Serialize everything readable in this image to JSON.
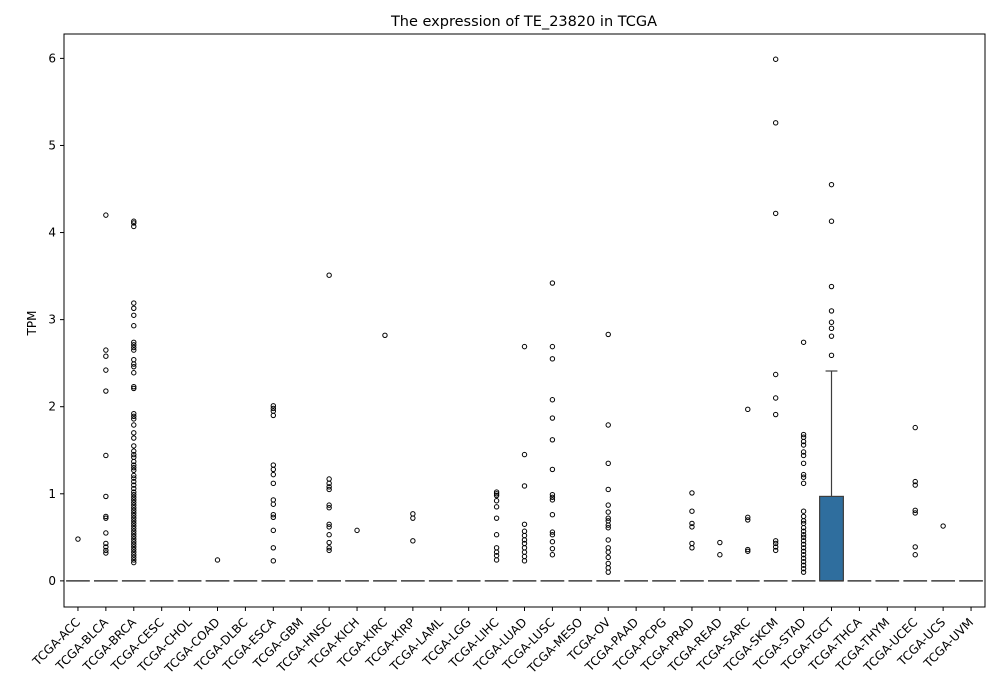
{
  "chart_data": {
    "type": "box",
    "title": "The expression of TE_23820 in TCGA",
    "xlabel": "",
    "ylabel": "TPM",
    "ylim": [
      -0.3,
      6.28
    ],
    "yticks": [
      0,
      1,
      2,
      3,
      4,
      5,
      6
    ],
    "box_color": "#2f6e9e",
    "categories": [
      "TCGA-ACC",
      "TCGA-BLCA",
      "TCGA-BRCA",
      "TCGA-CESC",
      "TCGA-CHOL",
      "TCGA-COAD",
      "TCGA-DLBC",
      "TCGA-ESCA",
      "TCGA-GBM",
      "TCGA-HNSC",
      "TCGA-KICH",
      "TCGA-KIRC",
      "TCGA-KIRP",
      "TCGA-LAML",
      "TCGA-LGG",
      "TCGA-LIHC",
      "TCGA-LUAD",
      "TCGA-LUSC",
      "TCGA-MESO",
      "TCGA-OV",
      "TCGA-PAAD",
      "TCGA-PCPG",
      "TCGA-PRAD",
      "TCGA-READ",
      "TCGA-SARC",
      "TCGA-SKCM",
      "TCGA-STAD",
      "TCGA-TGCT",
      "TCGA-THCA",
      "TCGA-THYM",
      "TCGA-UCEC",
      "TCGA-UCS",
      "TCGA-UVM"
    ],
    "boxes": [
      {
        "q1": 0,
        "median": 0,
        "q3": 0,
        "whisker_low": 0,
        "whisker_high": 0,
        "outliers": [
          0.48
        ]
      },
      {
        "q1": 0,
        "median": 0,
        "q3": 0,
        "whisker_low": 0,
        "whisker_high": 0,
        "outliers": [
          4.2,
          2.65,
          2.58,
          2.42,
          2.18,
          1.44,
          0.97,
          0.74,
          0.72,
          0.55,
          0.43,
          0.39,
          0.35,
          0.32
        ]
      },
      {
        "q1": 0,
        "median": 0,
        "q3": 0,
        "whisker_low": 0,
        "whisker_high": 0,
        "outliers": [
          4.13,
          4.11,
          4.07,
          3.19,
          3.13,
          3.05,
          2.93,
          2.74,
          2.71,
          2.68,
          2.65,
          2.54,
          2.49,
          2.46,
          2.39,
          2.23,
          2.21,
          1.92,
          1.89,
          1.86,
          1.79,
          1.7,
          1.64,
          1.55,
          1.49,
          1.45,
          1.42,
          1.37,
          1.33,
          1.3,
          1.27,
          1.21,
          1.18,
          1.14,
          1.1,
          1.06,
          1.02,
          0.99,
          0.96,
          0.93,
          0.9,
          0.87,
          0.84,
          0.81,
          0.78,
          0.75,
          0.72,
          0.69,
          0.66,
          0.63,
          0.6,
          0.57,
          0.54,
          0.51,
          0.48,
          0.45,
          0.42,
          0.39,
          0.36,
          0.33,
          0.3,
          0.27,
          0.24,
          0.21
        ]
      },
      {
        "q1": 0,
        "median": 0,
        "q3": 0,
        "whisker_low": 0,
        "whisker_high": 0,
        "outliers": []
      },
      {
        "q1": 0,
        "median": 0,
        "q3": 0,
        "whisker_low": 0,
        "whisker_high": 0,
        "outliers": []
      },
      {
        "q1": 0,
        "median": 0,
        "q3": 0,
        "whisker_low": 0,
        "whisker_high": 0,
        "outliers": [
          0.24
        ]
      },
      {
        "q1": 0,
        "median": 0,
        "q3": 0,
        "whisker_low": 0,
        "whisker_high": 0,
        "outliers": []
      },
      {
        "q1": 0,
        "median": 0,
        "q3": 0,
        "whisker_low": 0,
        "whisker_high": 0,
        "outliers": [
          2.01,
          1.98,
          1.95,
          1.9,
          1.33,
          1.28,
          1.22,
          1.12,
          0.93,
          0.88,
          0.76,
          0.73,
          0.58,
          0.38,
          0.23
        ]
      },
      {
        "q1": 0,
        "median": 0,
        "q3": 0,
        "whisker_low": 0,
        "whisker_high": 0,
        "outliers": []
      },
      {
        "q1": 0,
        "median": 0,
        "q3": 0,
        "whisker_low": 0,
        "whisker_high": 0,
        "outliers": [
          3.51,
          1.17,
          1.12,
          1.08,
          1.05,
          0.87,
          0.84,
          0.65,
          0.62,
          0.53,
          0.44,
          0.38,
          0.35
        ]
      },
      {
        "q1": 0,
        "median": 0,
        "q3": 0,
        "whisker_low": 0,
        "whisker_high": 0,
        "outliers": [
          0.58
        ]
      },
      {
        "q1": 0,
        "median": 0,
        "q3": 0,
        "whisker_low": 0,
        "whisker_high": 0,
        "outliers": [
          2.82
        ]
      },
      {
        "q1": 0,
        "median": 0,
        "q3": 0,
        "whisker_low": 0,
        "whisker_high": 0,
        "outliers": [
          0.77,
          0.72,
          0.46
        ]
      },
      {
        "q1": 0,
        "median": 0,
        "q3": 0,
        "whisker_low": 0,
        "whisker_high": 0,
        "outliers": []
      },
      {
        "q1": 0,
        "median": 0,
        "q3": 0,
        "whisker_low": 0,
        "whisker_high": 0,
        "outliers": []
      },
      {
        "q1": 0,
        "median": 0,
        "q3": 0,
        "whisker_low": 0,
        "whisker_high": 0,
        "outliers": [
          1.02,
          1.0,
          0.98,
          0.92,
          0.85,
          0.72,
          0.53,
          0.38,
          0.33,
          0.29,
          0.24
        ]
      },
      {
        "q1": 0,
        "median": 0,
        "q3": 0,
        "whisker_low": 0,
        "whisker_high": 0,
        "outliers": [
          2.69,
          1.45,
          1.09,
          0.65,
          0.57,
          0.52,
          0.47,
          0.43,
          0.38,
          0.33,
          0.28,
          0.23
        ]
      },
      {
        "q1": 0,
        "median": 0,
        "q3": 0,
        "whisker_low": 0,
        "whisker_high": 0,
        "outliers": [
          3.42,
          2.69,
          2.55,
          2.08,
          1.87,
          1.62,
          1.28,
          0.99,
          0.96,
          0.93,
          0.76,
          0.56,
          0.53,
          0.45,
          0.37,
          0.3
        ]
      },
      {
        "q1": 0,
        "median": 0,
        "q3": 0,
        "whisker_low": 0,
        "whisker_high": 0,
        "outliers": []
      },
      {
        "q1": 0,
        "median": 0,
        "q3": 0,
        "whisker_low": 0,
        "whisker_high": 0,
        "outliers": [
          2.83,
          1.79,
          1.35,
          1.05,
          0.87,
          0.79,
          0.72,
          0.69,
          0.64,
          0.61,
          0.47,
          0.38,
          0.33,
          0.27,
          0.2,
          0.15,
          0.1
        ]
      },
      {
        "q1": 0,
        "median": 0,
        "q3": 0,
        "whisker_low": 0,
        "whisker_high": 0,
        "outliers": []
      },
      {
        "q1": 0,
        "median": 0,
        "q3": 0,
        "whisker_low": 0,
        "whisker_high": 0,
        "outliers": []
      },
      {
        "q1": 0,
        "median": 0,
        "q3": 0,
        "whisker_low": 0,
        "whisker_high": 0,
        "outliers": [
          1.01,
          0.8,
          0.66,
          0.62,
          0.43,
          0.38
        ]
      },
      {
        "q1": 0,
        "median": 0,
        "q3": 0,
        "whisker_low": 0,
        "whisker_high": 0,
        "outliers": [
          0.44,
          0.3
        ]
      },
      {
        "q1": 0,
        "median": 0,
        "q3": 0,
        "whisker_low": 0,
        "whisker_high": 0,
        "outliers": [
          1.97,
          0.73,
          0.7,
          0.36,
          0.34
        ]
      },
      {
        "q1": 0,
        "median": 0,
        "q3": 0,
        "whisker_low": 0,
        "whisker_high": 0,
        "outliers": [
          5.99,
          5.26,
          4.22,
          2.37,
          2.1,
          1.91,
          0.46,
          0.43,
          0.39,
          0.35
        ]
      },
      {
        "q1": 0,
        "median": 0,
        "q3": 0,
        "whisker_low": 0,
        "whisker_high": 0,
        "outliers": [
          2.74,
          1.68,
          1.65,
          1.6,
          1.56,
          1.48,
          1.44,
          1.35,
          1.22,
          1.19,
          1.12,
          0.8,
          0.74,
          0.69,
          0.66,
          0.61,
          0.57,
          0.53,
          0.5,
          0.46,
          0.42,
          0.38,
          0.34,
          0.3,
          0.26,
          0.22,
          0.18,
          0.14,
          0.1
        ]
      },
      {
        "q1": 0,
        "median": 0,
        "q3": 0.97,
        "whisker_low": 0,
        "whisker_high": 2.41,
        "outliers": [
          4.55,
          4.13,
          3.38,
          3.1,
          2.97,
          2.9,
          2.81,
          2.59
        ]
      },
      {
        "q1": 0,
        "median": 0,
        "q3": 0,
        "whisker_low": 0,
        "whisker_high": 0,
        "outliers": []
      },
      {
        "q1": 0,
        "median": 0,
        "q3": 0,
        "whisker_low": 0,
        "whisker_high": 0,
        "outliers": []
      },
      {
        "q1": 0,
        "median": 0,
        "q3": 0,
        "whisker_low": 0,
        "whisker_high": 0,
        "outliers": [
          1.76,
          1.14,
          1.1,
          0.81,
          0.78,
          0.39,
          0.3
        ]
      },
      {
        "q1": 0,
        "median": 0,
        "q3": 0,
        "whisker_low": 0,
        "whisker_high": 0,
        "outliers": [
          0.63
        ]
      },
      {
        "q1": 0,
        "median": 0,
        "q3": 0,
        "whisker_low": 0,
        "whisker_high": 0,
        "outliers": []
      }
    ]
  }
}
